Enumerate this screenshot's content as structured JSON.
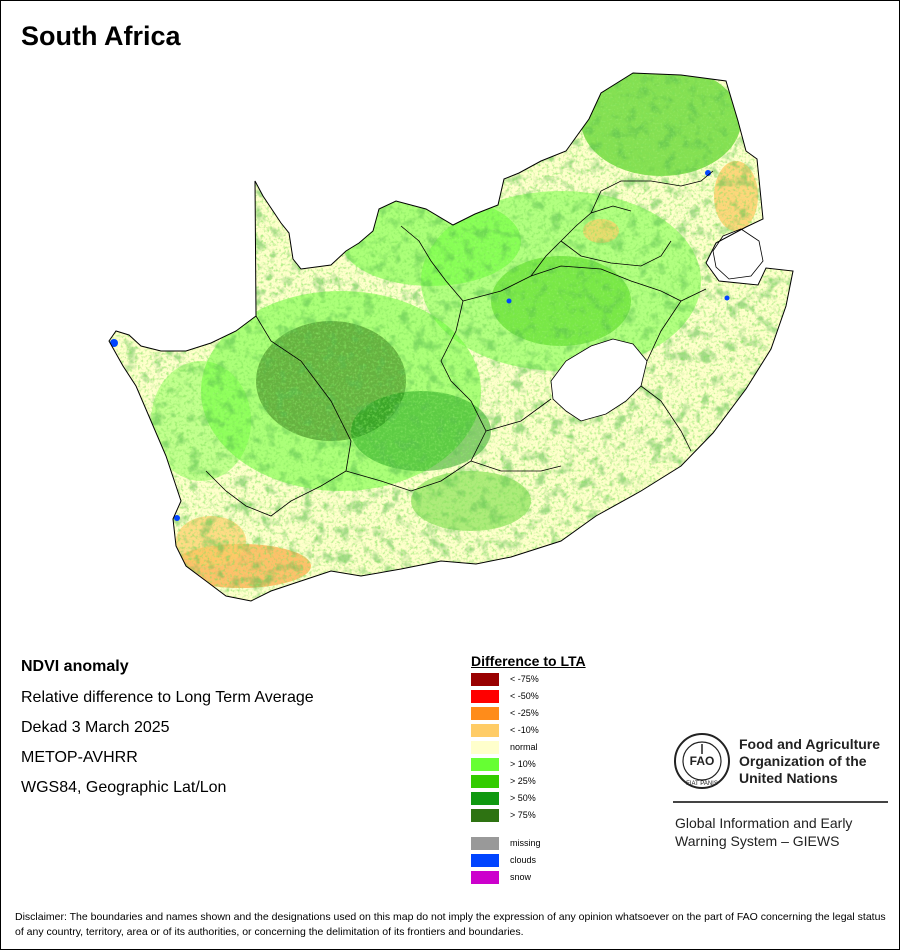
{
  "map": {
    "title": "South Africa"
  },
  "info": {
    "title": "NDVI anomaly",
    "subtitle": "Relative difference to Long Term Average",
    "dekad": "Dekad 3 March 2025",
    "sensor": "METOP-AVHRR",
    "projection": "WGS84, Geographic Lat/Lon"
  },
  "legend": {
    "title": "Difference to LTA",
    "items": [
      {
        "label": "< -75%",
        "color": "#990000"
      },
      {
        "label": "< -50%",
        "color": "#ff0000"
      },
      {
        "label": "< -25%",
        "color": "#ff8c1a"
      },
      {
        "label": "< -10%",
        "color": "#ffcc66"
      },
      {
        "label": "normal",
        "color": "#ffffcc"
      },
      {
        "label": "> 10%",
        "color": "#66ff33"
      },
      {
        "label": "> 25%",
        "color": "#33cc00"
      },
      {
        "label": "> 50%",
        "color": "#0f990f"
      },
      {
        "label": "> 75%",
        "color": "#2e7312"
      }
    ],
    "extra": [
      {
        "label": "missing",
        "color": "#999999"
      },
      {
        "label": "clouds",
        "color": "#0044ff"
      },
      {
        "label": "snow",
        "color": "#cc00cc"
      }
    ]
  },
  "organization": {
    "name_line1": "Food and Agriculture",
    "name_line2": "Organization of the",
    "name_line3": "United Nations",
    "system_line1": "Global Information and Early",
    "system_line2": "Warning System – GIEWS",
    "logo_motto": "FIAT PANIS",
    "logo_letters": "FAO"
  },
  "disclaimer": "Disclaimer: The boundaries and names shown and the designations used on this map do not imply the expression of any opinion whatsoever on the part of FAO concerning the legal status of any country, territory, area or of its authorities, or concerning the delimitation of its frontiers and boundaries.",
  "colors": {
    "land_normal": "#ffffcc",
    "border": "#000000"
  }
}
